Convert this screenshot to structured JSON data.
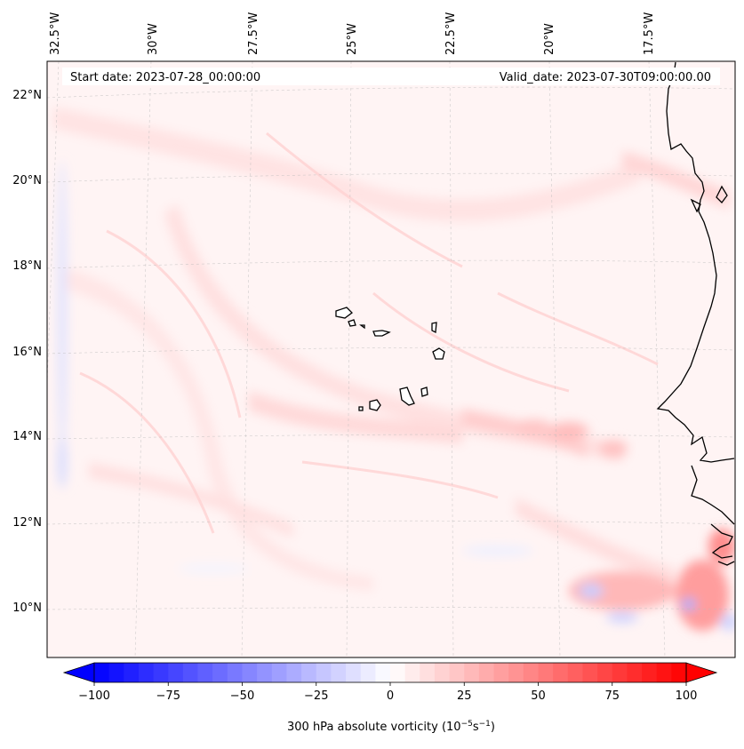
{
  "map": {
    "start_date": "Start date: 2023-07-28_00:00:00",
    "valid_date": "Valid_date: 2023-07-30T09:00:00.00",
    "lon_labels": [
      "32.5°W",
      "30°W",
      "27.5°W",
      "25°W",
      "22.5°W",
      "20°W",
      "17.5°W"
    ],
    "lat_labels": [
      "22°N",
      "20°N",
      "18°N",
      "16°N",
      "14°N",
      "12°N",
      "10°N"
    ],
    "extent": {
      "lon_min": -32.6,
      "lon_max": -15.5,
      "lat_min": 8.9,
      "lat_max": 22.8
    },
    "colors": {
      "positive": "#ff0000",
      "negative": "#0000ff",
      "zero": "#ffffff",
      "coast": "#000000"
    }
  },
  "colorbar": {
    "label": "300 hPa absolute vorticity (10",
    "label_sup1": "−5",
    "label_mid": "s",
    "label_sup2": "−1",
    "label_end": ")",
    "tick_labels": [
      "−100",
      "−75",
      "−50",
      "−25",
      "0",
      "25",
      "50",
      "75",
      "100"
    ],
    "min": -100,
    "max": 100,
    "step": 5
  }
}
